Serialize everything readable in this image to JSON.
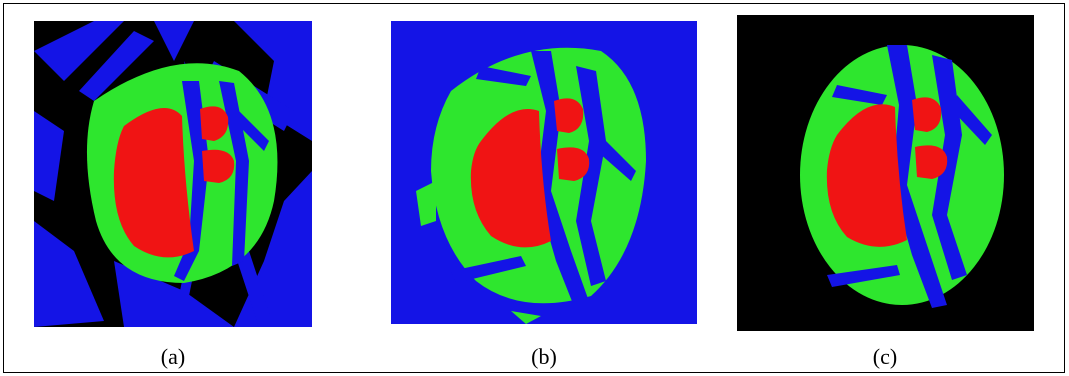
{
  "captions": {
    "a": "(a)",
    "b": "(b)",
    "c": "(c)"
  },
  "colors": {
    "blue": "#1414e6",
    "green": "#2ee62e",
    "red": "#f01414",
    "black": "#000000"
  },
  "panels": [
    {
      "id": "a",
      "background": "black"
    },
    {
      "id": "b",
      "background": "blue"
    },
    {
      "id": "c",
      "background": "black"
    }
  ]
}
